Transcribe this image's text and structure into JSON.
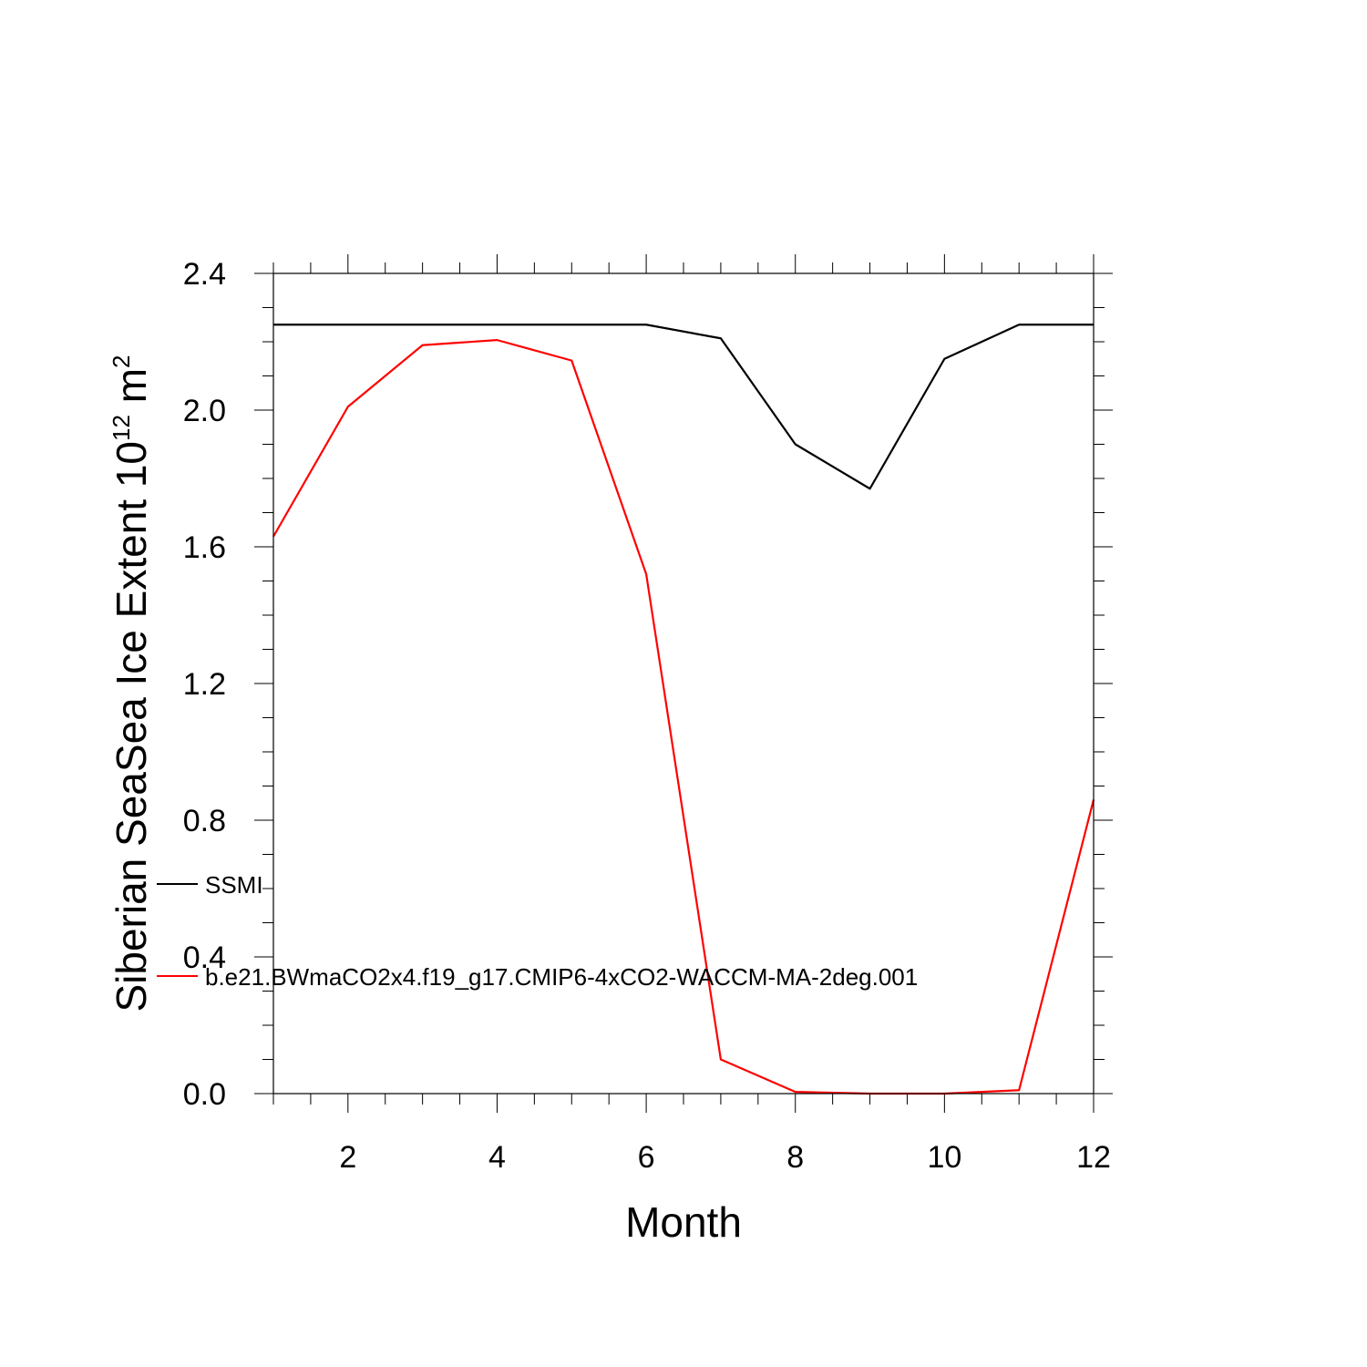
{
  "chart_data": {
    "type": "line",
    "xlabel": "Month",
    "ylabel": {
      "prefix": "Siberian SeaSea Ice Extent 10",
      "exponent": "12",
      "unit": " m",
      "unit_exponent": "2"
    },
    "xlim": [
      1,
      12
    ],
    "ylim": [
      0.0,
      2.4
    ],
    "x_ticks": [
      2,
      4,
      6,
      8,
      10,
      12
    ],
    "x_tick_labels": [
      "2",
      "4",
      "6",
      "8",
      "10",
      "12"
    ],
    "y_ticks": [
      0.0,
      0.4,
      0.8,
      1.2,
      1.6,
      2.0,
      2.4
    ],
    "y_tick_labels": [
      "0.0",
      "0.4",
      "0.8",
      "1.2",
      "1.6",
      "2.0",
      "2.4"
    ],
    "grid": false,
    "legend_position": "left, overlapping plot",
    "x": [
      1,
      2,
      3,
      4,
      5,
      6,
      7,
      8,
      9,
      10,
      11,
      12
    ],
    "series": [
      {
        "name": "SSMI",
        "color": "#000000",
        "values": [
          2.25,
          2.25,
          2.25,
          2.25,
          2.25,
          2.25,
          2.21,
          1.9,
          1.77,
          2.15,
          2.25,
          2.25
        ]
      },
      {
        "name": "b.e21.BWmaCO2x4.f19_g17.CMIP6-4xCO2-WACCM-MA-2deg.001",
        "color": "#ff0000",
        "values": [
          1.63,
          2.01,
          2.19,
          2.205,
          2.145,
          1.52,
          0.1,
          0.005,
          0.0,
          0.0,
          0.01,
          0.86
        ]
      }
    ]
  }
}
